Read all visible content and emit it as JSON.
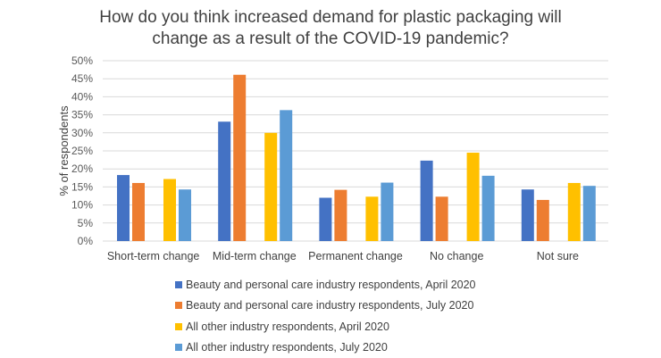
{
  "chart_data": {
    "type": "bar",
    "title": "How do you think increased demand for plastic packaging will change as a result of the COVID-19 pandemic?",
    "title_lines": [
      "How do you think increased demand for plastic packaging will",
      "change as a result of the COVID-19 pandemic?"
    ],
    "xlabel": "",
    "ylabel": "% of respondents",
    "ylim": [
      0,
      50
    ],
    "yticks": [
      0,
      5,
      10,
      15,
      20,
      25,
      30,
      35,
      40,
      45,
      50
    ],
    "ytick_labels": [
      "0%",
      "5%",
      "10%",
      "15%",
      "20%",
      "25%",
      "30%",
      "35%",
      "40%",
      "45%",
      "50%"
    ],
    "grid": true,
    "legend_position": "bottom",
    "categories": [
      "Short-term change",
      "Mid-term change",
      "Permanent change",
      "No change",
      "Not sure"
    ],
    "series": [
      {
        "name": "Beauty and personal care industry respondents, April 2020",
        "color": "#4472C4",
        "values": [
          18.3,
          33.1,
          12.0,
          22.3,
          14.3
        ]
      },
      {
        "name": "Beauty and personal care industry respondents, July 2020",
        "color": "#ED7D31",
        "values": [
          16.1,
          46.1,
          14.2,
          12.3,
          11.4
        ]
      },
      {
        "name": "All other industry respondents, April 2020",
        "color": "#FFC000",
        "values": [
          17.2,
          30.0,
          12.3,
          24.5,
          16.1
        ]
      },
      {
        "name": "All other industry respondents, July 2020",
        "color": "#5B9BD5",
        "values": [
          14.3,
          36.3,
          16.2,
          18.1,
          15.3
        ]
      }
    ]
  }
}
